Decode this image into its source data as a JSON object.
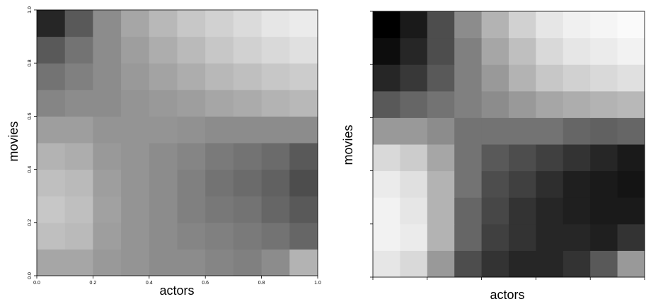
{
  "chart_data": [
    {
      "type": "heatmap",
      "xlabel": "actors",
      "ylabel": "movies",
      "xlim": [
        0,
        1
      ],
      "ylim": [
        0,
        1
      ],
      "xbins": [
        0,
        0.1,
        0.2,
        0.3,
        0.4,
        0.5,
        0.6,
        0.7,
        0.8,
        0.9,
        1
      ],
      "ybins": [
        0,
        0.1,
        0.2,
        0.3,
        0.4,
        0.5,
        0.6,
        0.7,
        0.8,
        0.9,
        1
      ],
      "color_low": "#ffffff",
      "color_high": "#000000",
      "tick_labels": true,
      "xticks": [
        {
          "value": 0,
          "label": "0.0"
        },
        {
          "value": 0.2,
          "label": "0.2"
        },
        {
          "value": 0.4,
          "label": "0.4"
        },
        {
          "value": 0.6,
          "label": "0.6"
        },
        {
          "value": 0.8,
          "label": "0.8"
        },
        {
          "value": 1,
          "label": "1.0"
        }
      ],
      "yticks": [
        {
          "value": 0,
          "label": "0.0"
        },
        {
          "value": 0.2,
          "label": "0.2"
        },
        {
          "value": 0.4,
          "label": "0.4"
        },
        {
          "value": 0.6,
          "label": "0.6"
        },
        {
          "value": 0.8,
          "label": "0.8"
        },
        {
          "value": 1,
          "label": "1.0"
        }
      ],
      "z": [
        [
          0.35,
          0.35,
          0.4,
          0.42,
          0.45,
          0.45,
          0.48,
          0.5,
          0.45,
          0.3
        ],
        [
          0.25,
          0.27,
          0.38,
          0.42,
          0.45,
          0.48,
          0.5,
          0.52,
          0.55,
          0.6
        ],
        [
          0.22,
          0.25,
          0.37,
          0.42,
          0.45,
          0.5,
          0.53,
          0.55,
          0.6,
          0.65
        ],
        [
          0.25,
          0.27,
          0.38,
          0.42,
          0.45,
          0.5,
          0.55,
          0.58,
          0.62,
          0.7
        ],
        [
          0.3,
          0.32,
          0.4,
          0.42,
          0.45,
          0.48,
          0.52,
          0.55,
          0.58,
          0.65
        ],
        [
          0.38,
          0.38,
          0.42,
          0.42,
          0.42,
          0.43,
          0.45,
          0.45,
          0.45,
          0.45
        ],
        [
          0.48,
          0.45,
          0.45,
          0.42,
          0.4,
          0.38,
          0.35,
          0.33,
          0.3,
          0.28
        ],
        [
          0.55,
          0.5,
          0.45,
          0.4,
          0.36,
          0.32,
          0.28,
          0.25,
          0.22,
          0.2
        ],
        [
          0.65,
          0.55,
          0.45,
          0.38,
          0.32,
          0.27,
          0.22,
          0.18,
          0.15,
          0.12
        ],
        [
          0.85,
          0.65,
          0.45,
          0.35,
          0.28,
          0.22,
          0.18,
          0.14,
          0.1,
          0.08
        ]
      ]
    },
    {
      "type": "heatmap",
      "xlabel": "actors",
      "ylabel": "movies",
      "xlim": [
        0,
        1
      ],
      "ylim": [
        0,
        1
      ],
      "xbins": [
        0,
        0.1,
        0.2,
        0.3,
        0.4,
        0.5,
        0.6,
        0.7,
        0.8,
        0.9,
        1
      ],
      "ybins": [
        0,
        0.1,
        0.2,
        0.3,
        0.4,
        0.5,
        0.6,
        0.7,
        0.8,
        0.9,
        1
      ],
      "color_low": "#ffffff",
      "color_high": "#000000",
      "tick_labels": false,
      "xticks": [
        0,
        0.2,
        0.4,
        0.6,
        0.8,
        1
      ],
      "yticks": [
        0,
        0.2,
        0.4,
        0.6,
        0.8,
        1
      ],
      "z": [
        [
          0.1,
          0.15,
          0.4,
          0.7,
          0.8,
          0.85,
          0.85,
          0.8,
          0.65,
          0.4
        ],
        [
          0.05,
          0.08,
          0.3,
          0.6,
          0.75,
          0.8,
          0.85,
          0.85,
          0.88,
          0.8
        ],
        [
          0.05,
          0.1,
          0.3,
          0.6,
          0.72,
          0.8,
          0.85,
          0.88,
          0.9,
          0.9
        ],
        [
          0.08,
          0.12,
          0.3,
          0.55,
          0.7,
          0.75,
          0.82,
          0.88,
          0.9,
          0.92
        ],
        [
          0.15,
          0.2,
          0.35,
          0.55,
          0.65,
          0.7,
          0.75,
          0.8,
          0.85,
          0.9
        ],
        [
          0.4,
          0.4,
          0.45,
          0.55,
          0.55,
          0.55,
          0.55,
          0.6,
          0.62,
          0.6
        ],
        [
          0.65,
          0.6,
          0.55,
          0.5,
          0.45,
          0.4,
          0.35,
          0.32,
          0.3,
          0.28
        ],
        [
          0.85,
          0.78,
          0.65,
          0.5,
          0.4,
          0.3,
          0.22,
          0.18,
          0.15,
          0.12
        ],
        [
          0.95,
          0.85,
          0.7,
          0.5,
          0.35,
          0.25,
          0.15,
          0.1,
          0.08,
          0.05
        ],
        [
          1.0,
          0.9,
          0.7,
          0.45,
          0.3,
          0.18,
          0.1,
          0.06,
          0.04,
          0.02
        ]
      ]
    }
  ]
}
